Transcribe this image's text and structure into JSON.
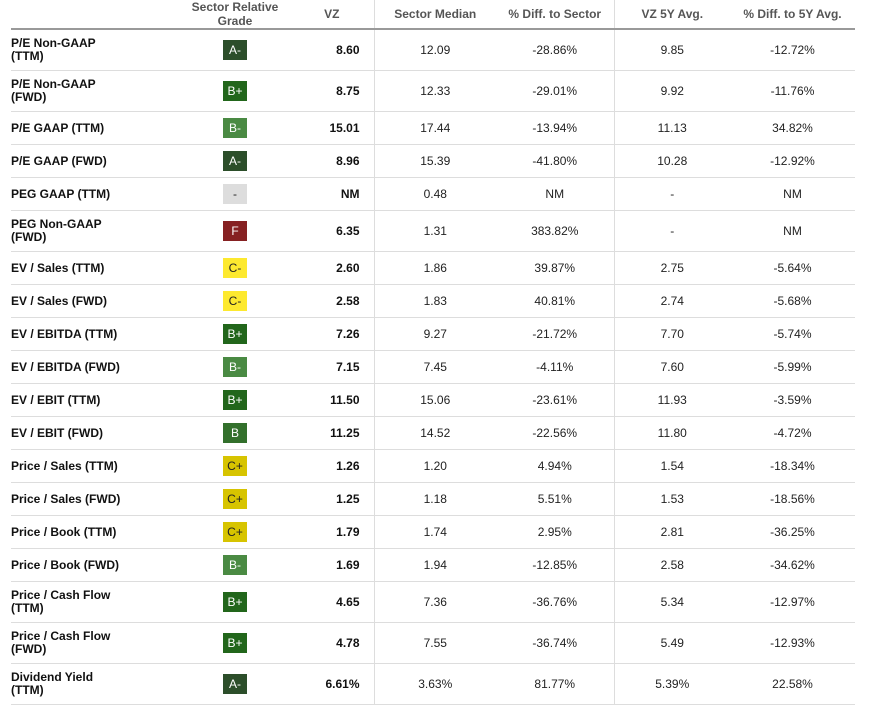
{
  "headers": [
    "",
    "Sector Relative Grade",
    "VZ",
    "Sector Median",
    "% Diff. to Sector",
    "VZ 5Y Avg.",
    "% Diff. to 5Y Avg."
  ],
  "grade_colors": {
    "A-": {
      "bg": "#2c4e2a",
      "fg": "#ffffff"
    },
    "B+": {
      "bg": "#22661b",
      "fg": "#ffffff"
    },
    "B": {
      "bg": "#33702c",
      "fg": "#ffffff"
    },
    "B-": {
      "bg": "#4a8a43",
      "fg": "#ffffff"
    },
    "C+": {
      "bg": "#d7c400",
      "fg": "#222222"
    },
    "C-": {
      "bg": "#fde92f",
      "fg": "#222222"
    },
    "F": {
      "bg": "#862122",
      "fg": "#ffffff"
    },
    "-": {
      "bg": "#dddddd",
      "fg": "#222222"
    }
  },
  "rows": [
    {
      "metric": "P/E Non-GAAP (TTM)",
      "line1": "P/E Non-GAAP",
      "line2": "(TTM)",
      "grade": "A-",
      "vz": "8.60",
      "sector_median": "12.09",
      "diff_sector": "-28.86%",
      "avg5y": "9.85",
      "diff_5y": "-12.72%"
    },
    {
      "metric": "P/E Non-GAAP (FWD)",
      "line1": "P/E Non-GAAP",
      "line2": "(FWD)",
      "grade": "B+",
      "vz": "8.75",
      "sector_median": "12.33",
      "diff_sector": "-29.01%",
      "avg5y": "9.92",
      "diff_5y": "-11.76%"
    },
    {
      "metric": "P/E GAAP (TTM)",
      "line1": "P/E GAAP (TTM)",
      "line2": "",
      "grade": "B-",
      "vz": "15.01",
      "sector_median": "17.44",
      "diff_sector": "-13.94%",
      "avg5y": "11.13",
      "diff_5y": "34.82%"
    },
    {
      "metric": "P/E GAAP (FWD)",
      "line1": "P/E GAAP (FWD)",
      "line2": "",
      "grade": "A-",
      "vz": "8.96",
      "sector_median": "15.39",
      "diff_sector": "-41.80%",
      "avg5y": "10.28",
      "diff_5y": "-12.92%"
    },
    {
      "metric": "PEG GAAP (TTM)",
      "line1": "PEG GAAP (TTM)",
      "line2": "",
      "grade": "-",
      "vz": "NM",
      "sector_median": "0.48",
      "diff_sector": "NM",
      "avg5y": "-",
      "diff_5y": "NM"
    },
    {
      "metric": "PEG Non-GAAP (FWD)",
      "line1": "PEG Non-GAAP",
      "line2": "(FWD)",
      "grade": "F",
      "vz": "6.35",
      "sector_median": "1.31",
      "diff_sector": "383.82%",
      "avg5y": "-",
      "diff_5y": "NM"
    },
    {
      "metric": "EV / Sales (TTM)",
      "line1": "EV / Sales (TTM)",
      "line2": "",
      "grade": "C-",
      "vz": "2.60",
      "sector_median": "1.86",
      "diff_sector": "39.87%",
      "avg5y": "2.75",
      "diff_5y": "-5.64%"
    },
    {
      "metric": "EV / Sales (FWD)",
      "line1": "EV / Sales (FWD)",
      "line2": "",
      "grade": "C-",
      "vz": "2.58",
      "sector_median": "1.83",
      "diff_sector": "40.81%",
      "avg5y": "2.74",
      "diff_5y": "-5.68%"
    },
    {
      "metric": "EV / EBITDA (TTM)",
      "line1": "EV / EBITDA (TTM)",
      "line2": "",
      "grade": "B+",
      "vz": "7.26",
      "sector_median": "9.27",
      "diff_sector": "-21.72%",
      "avg5y": "7.70",
      "diff_5y": "-5.74%"
    },
    {
      "metric": "EV / EBITDA (FWD)",
      "line1": "EV / EBITDA (FWD)",
      "line2": "",
      "grade": "B-",
      "vz": "7.15",
      "sector_median": "7.45",
      "diff_sector": "-4.11%",
      "avg5y": "7.60",
      "diff_5y": "-5.99%"
    },
    {
      "metric": "EV / EBIT (TTM)",
      "line1": "EV / EBIT (TTM)",
      "line2": "",
      "grade": "B+",
      "vz": "11.50",
      "sector_median": "15.06",
      "diff_sector": "-23.61%",
      "avg5y": "11.93",
      "diff_5y": "-3.59%"
    },
    {
      "metric": "EV / EBIT (FWD)",
      "line1": "EV / EBIT (FWD)",
      "line2": "",
      "grade": "B",
      "vz": "11.25",
      "sector_median": "14.52",
      "diff_sector": "-22.56%",
      "avg5y": "11.80",
      "diff_5y": "-4.72%"
    },
    {
      "metric": "Price / Sales (TTM)",
      "line1": "Price / Sales (TTM)",
      "line2": "",
      "grade": "C+",
      "vz": "1.26",
      "sector_median": "1.20",
      "diff_sector": "4.94%",
      "avg5y": "1.54",
      "diff_5y": "-18.34%"
    },
    {
      "metric": "Price / Sales (FWD)",
      "line1": "Price / Sales (FWD)",
      "line2": "",
      "grade": "C+",
      "vz": "1.25",
      "sector_median": "1.18",
      "diff_sector": "5.51%",
      "avg5y": "1.53",
      "diff_5y": "-18.56%"
    },
    {
      "metric": "Price / Book (TTM)",
      "line1": "Price / Book (TTM)",
      "line2": "",
      "grade": "C+",
      "vz": "1.79",
      "sector_median": "1.74",
      "diff_sector": "2.95%",
      "avg5y": "2.81",
      "diff_5y": "-36.25%"
    },
    {
      "metric": "Price / Book (FWD)",
      "line1": "Price / Book (FWD)",
      "line2": "",
      "grade": "B-",
      "vz": "1.69",
      "sector_median": "1.94",
      "diff_sector": "-12.85%",
      "avg5y": "2.58",
      "diff_5y": "-34.62%"
    },
    {
      "metric": "Price / Cash Flow (TTM)",
      "line1": "Price / Cash Flow",
      "line2": "(TTM)",
      "grade": "B+",
      "vz": "4.65",
      "sector_median": "7.36",
      "diff_sector": "-36.76%",
      "avg5y": "5.34",
      "diff_5y": "-12.97%"
    },
    {
      "metric": "Price / Cash Flow (FWD)",
      "line1": "Price / Cash Flow",
      "line2": "(FWD)",
      "grade": "B+",
      "vz": "4.78",
      "sector_median": "7.55",
      "diff_sector": "-36.74%",
      "avg5y": "5.49",
      "diff_5y": "-12.93%"
    },
    {
      "metric": "Dividend Yield (TTM)",
      "line1": "Dividend Yield",
      "line2": "(TTM)",
      "grade": "A-",
      "vz": "6.61%",
      "sector_median": "3.63%",
      "diff_sector": "81.77%",
      "avg5y": "5.39%",
      "diff_5y": "22.58%"
    }
  ]
}
